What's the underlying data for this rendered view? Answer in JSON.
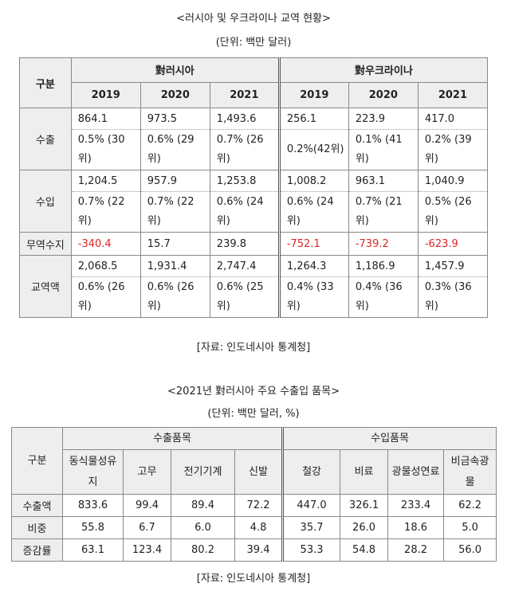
{
  "table1": {
    "title": "<러시아 및 우크라이나 교역 현황>",
    "unit": "(단위: 백만 달러)",
    "source": "[자료: 인도네시아 통계청]",
    "header": {
      "category": "구분",
      "group_russia": "對러시아",
      "group_ukraine": "對우크라이나",
      "years": [
        "2019",
        "2020",
        "2021",
        "2019",
        "2020",
        "2021"
      ]
    },
    "rows": {
      "export": {
        "label": "수출",
        "values": [
          "864.1",
          "973.5",
          "1,493.6",
          "256.1",
          "223.9",
          "417.0"
        ],
        "shares": [
          "0.5% (30위)",
          "0.6% (29위)",
          "0.7% (26위)",
          "0.2%(42위)",
          "0.1% (41위)",
          "0.2% (39위)"
        ]
      },
      "import": {
        "label": "수입",
        "values": [
          "1,204.5",
          "957.9",
          "1,253.8",
          "1,008.2",
          "963.1",
          "1,040.9"
        ],
        "shares": [
          "0.7% (22위)",
          "0.7% (22위)",
          "0.6% (24위)",
          "0.6% (24위)",
          "0.7% (21위)",
          "0.5% (26위)"
        ]
      },
      "balance": {
        "label": "무역수지",
        "values": [
          "-340.4",
          "15.7",
          "239.8",
          "-752.1",
          "-739.2",
          "-623.9"
        ]
      },
      "total": {
        "label": "교역액",
        "values": [
          "2,068.5",
          "1,931.4",
          "2,747.4",
          "1,264.3",
          "1,186.9",
          "1,457.9"
        ],
        "shares": [
          "0.6% (26위)",
          "0.6% (26위)",
          "0.6% (25위)",
          "0.4% (33위)",
          "0.4% (36위)",
          "0.3% (36위)"
        ]
      }
    },
    "colors": {
      "negative": "#e02424",
      "header_bg": "#eeeeee"
    }
  },
  "table2": {
    "title": "<2021년 對러시아 주요 수출입 품목>",
    "unit": "(단위: 백만 달러, %)",
    "source": "[자료: 인도네시아 통계청]",
    "header": {
      "category": "구분",
      "export_group": "수출품목",
      "import_group": "수입품목",
      "items": [
        "동식물성유지",
        "고무",
        "전기기계",
        "신발",
        "철강",
        "비료",
        "광물성연료",
        "비금속광물"
      ]
    },
    "rows": [
      {
        "label": "수출액",
        "values": [
          "833.6",
          "99.4",
          "89.4",
          "72.2",
          "447.0",
          "326.1",
          "233.4",
          "62.2"
        ]
      },
      {
        "label": "비중",
        "values": [
          "55.8",
          "6.7",
          "6.0",
          "4.8",
          "35.7",
          "26.0",
          "18.6",
          "5.0"
        ]
      },
      {
        "label": "증감률",
        "values": [
          "63.1",
          "123.4",
          "80.2",
          "39.4",
          "53.3",
          "54.8",
          "28.2",
          "56.0"
        ]
      }
    ]
  }
}
